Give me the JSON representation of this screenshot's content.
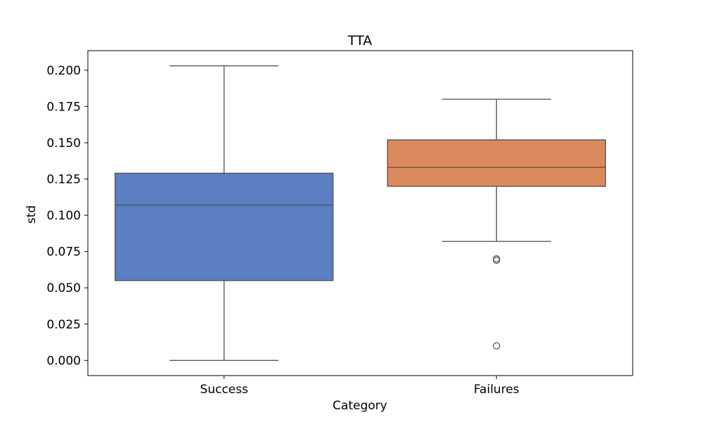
{
  "chart_data": {
    "type": "box",
    "title": "TTA",
    "xlabel": "Category",
    "ylabel": "std",
    "ylim": [
      -0.0105,
      0.2135
    ],
    "yticks": [
      "0.000",
      "0.025",
      "0.050",
      "0.075",
      "0.100",
      "0.125",
      "0.150",
      "0.175",
      "0.200"
    ],
    "categories": [
      "Success",
      "Failures"
    ],
    "boxes": [
      {
        "category": "Success",
        "color": "#5b7ec2",
        "whisker_low": 0.0,
        "q1": 0.055,
        "median": 0.107,
        "q3": 0.129,
        "whisker_high": 0.203,
        "outliers": []
      },
      {
        "category": "Failures",
        "color": "#db8a5e",
        "whisker_low": 0.082,
        "q1": 0.12,
        "median": 0.133,
        "q3": 0.152,
        "whisker_high": 0.18,
        "outliers": [
          0.07,
          0.069,
          0.01
        ]
      }
    ],
    "grid": false,
    "legend": "none"
  }
}
